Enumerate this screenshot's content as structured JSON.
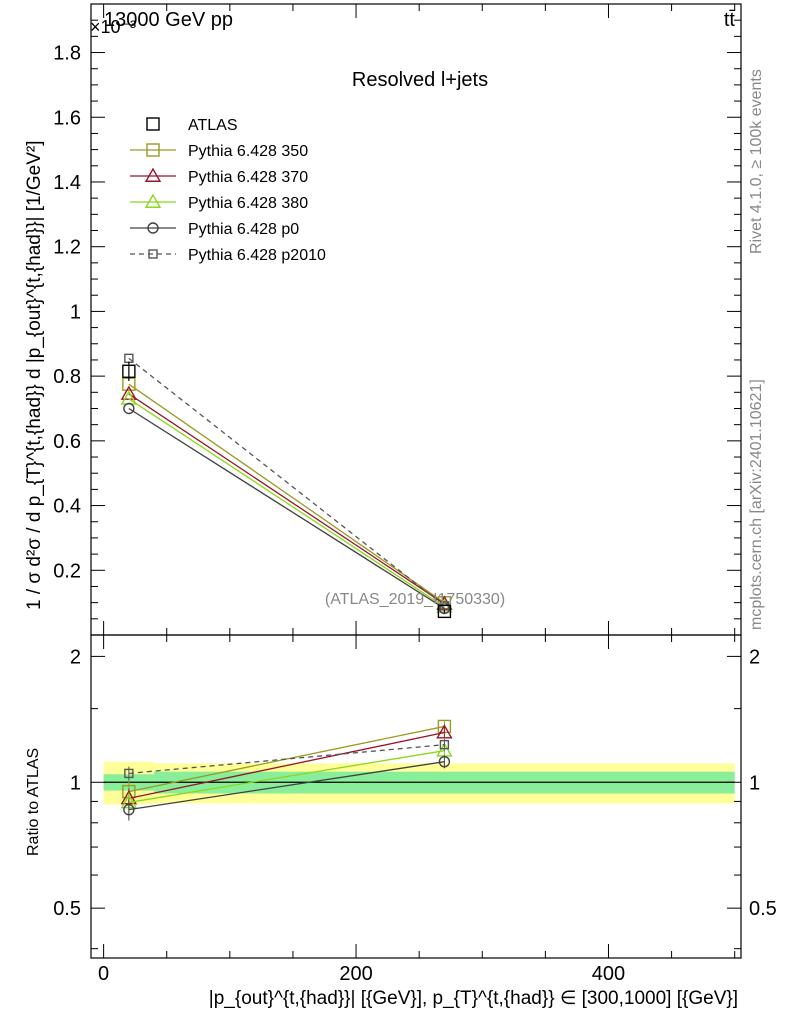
{
  "header": {
    "energy_label": "13000 GeV pp",
    "process_label": "tt̄",
    "exponent_label": "×10⁻³"
  },
  "side_labels": {
    "rivet": "Rivet 4.1.0, ≥ 100k events",
    "mcplots": "mcplots.cern.ch [arXiv:2401.10621]"
  },
  "chart_data": {
    "type": "line",
    "title": "Resolved l+jets",
    "analysis_tag": "(ATLAS_2019_I1750330)",
    "xlabel": "|p_{out}^{t,{had}}| [{GeV}], p_{T}^{t,{had}} ∈ [300,1000] [{GeV}]",
    "ylabel": "1 / σ d²σ / d p_{T}^{t,{had}} d |p_{out}^{t,{had}}| [1/GeV²]",
    "ratio_ylabel": "Ratio to ATLAS",
    "xlim": [
      -10,
      505
    ],
    "ylim": [
      0,
      1.95
    ],
    "ratio_ylim": [
      0.38,
      2.25
    ],
    "x_ticks": [
      0,
      200,
      400
    ],
    "y_ticks": [
      0.2,
      0.4,
      0.6,
      0.8,
      1,
      1.2,
      1.4,
      1.6,
      1.8
    ],
    "ratio_ticks": [
      0.5,
      1,
      2
    ],
    "ratio_tick_labels": [
      "0.5",
      "1",
      "2"
    ],
    "x": [
      20,
      270
    ],
    "data": {
      "name": "ATLAS",
      "values": [
        0.815,
        0.073
      ],
      "errors": [
        0.03,
        0.004
      ],
      "bands": [
        {
          "x0": 0,
          "x1": 40,
          "inner": [
            0.955,
            1.045
          ],
          "outer": [
            0.885,
            1.12
          ]
        },
        {
          "x0": 40,
          "x1": 500,
          "inner": [
            0.94,
            1.06
          ],
          "outer": [
            0.89,
            1.11
          ]
        }
      ]
    },
    "series": [
      {
        "name": "Pythia 6.428 350",
        "color": "#9a9a24",
        "marker": "square-open",
        "dash": "",
        "values": [
          0.775,
          0.0995
        ],
        "ratio": [
          0.95,
          1.36
        ],
        "ratio_err": [
          0.06,
          0.04
        ]
      },
      {
        "name": "Pythia 6.428 370",
        "color": "#9a1428",
        "marker": "triangle-open",
        "dash": "",
        "values": [
          0.745,
          0.096
        ],
        "ratio": [
          0.915,
          1.315
        ],
        "ratio_err": [
          0.05,
          0.04
        ]
      },
      {
        "name": "Pythia 6.428 380",
        "color": "#8ad81c",
        "marker": "triangle-open",
        "dash": "",
        "values": [
          0.73,
          0.087
        ],
        "ratio": [
          0.895,
          1.19
        ],
        "ratio_err": [
          0.05,
          0.04
        ]
      },
      {
        "name": "Pythia 6.428 p0",
        "color": "#404040",
        "marker": "circle-open",
        "dash": "",
        "values": [
          0.7,
          0.082
        ],
        "ratio": [
          0.86,
          1.12
        ],
        "ratio_err": [
          0.05,
          0.04
        ]
      },
      {
        "name": "Pythia 6.428 p2010",
        "color": "#555555",
        "marker": "square-open-small",
        "dash": "5,4",
        "values": [
          0.855,
          0.09
        ],
        "ratio": [
          1.05,
          1.23
        ],
        "ratio_err": [
          0.04,
          0.04
        ]
      }
    ],
    "grid": false,
    "legend_position": "top-left"
  }
}
